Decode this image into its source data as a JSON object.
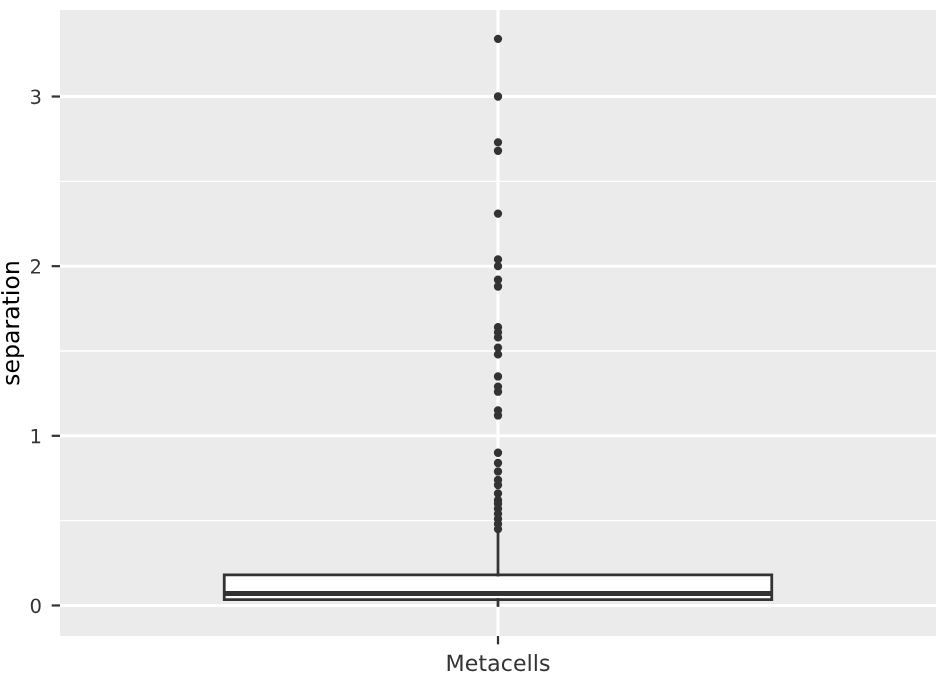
{
  "chart_data": {
    "type": "box",
    "ylabel": "separation",
    "categories": [
      "Metacells"
    ],
    "boxes": [
      {
        "low": 0.0,
        "q1": 0.035,
        "median": 0.07,
        "q3": 0.18,
        "high": 0.42,
        "outliers": [
          3.34,
          3.0,
          2.73,
          2.68,
          2.31,
          2.04,
          2.0,
          1.92,
          1.88,
          1.64,
          1.61,
          1.58,
          1.52,
          1.48,
          1.35,
          1.29,
          1.26,
          1.15,
          1.12,
          0.9,
          0.84,
          0.79,
          0.74,
          0.71,
          0.66,
          0.62,
          0.6,
          0.57,
          0.54,
          0.51,
          0.48,
          0.45
        ]
      }
    ],
    "ylim": [
      -0.18,
      3.51
    ],
    "yticks": [
      0,
      1,
      2,
      3
    ],
    "grid": true
  }
}
